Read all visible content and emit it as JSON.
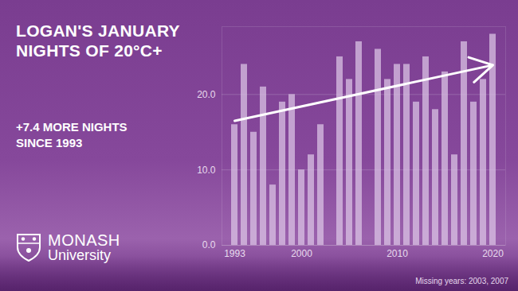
{
  "chart_data": {
    "type": "bar",
    "title": "LOGAN'S JANUARY NIGHTS OF 20°C+",
    "subtitle": "+7.4 MORE NIGHTS SINCE 1993",
    "annotations": [
      "Missing years: 2003, 2007",
      "MONASH",
      "University"
    ],
    "x": [
      1993,
      1994,
      1995,
      1996,
      1997,
      1998,
      1999,
      2000,
      2001,
      2002,
      2003,
      2004,
      2005,
      2006,
      2007,
      2008,
      2009,
      2010,
      2011,
      2012,
      2013,
      2014,
      2015,
      2016,
      2017,
      2018,
      2019,
      2020
    ],
    "values": [
      16,
      24,
      15,
      21,
      8,
      19,
      20,
      10,
      12,
      16,
      null,
      25,
      22,
      27,
      null,
      26,
      22,
      24,
      24,
      19,
      25,
      18,
      23,
      12,
      27,
      19,
      22,
      28
    ],
    "color": "#dcc6e6",
    "trend": {
      "x": [
        1993,
        2020
      ],
      "values": [
        16.5,
        23.9
      ],
      "color": "#ffffff"
    },
    "xticks": [
      1993,
      2000,
      2010,
      2020
    ],
    "ylim": [
      0,
      29
    ],
    "yticks": [
      {
        "value": 0,
        "label": "0.0"
      },
      {
        "value": 10,
        "label": "10.0"
      },
      {
        "value": 20,
        "label": "20.0"
      }
    ],
    "grid": true
  }
}
